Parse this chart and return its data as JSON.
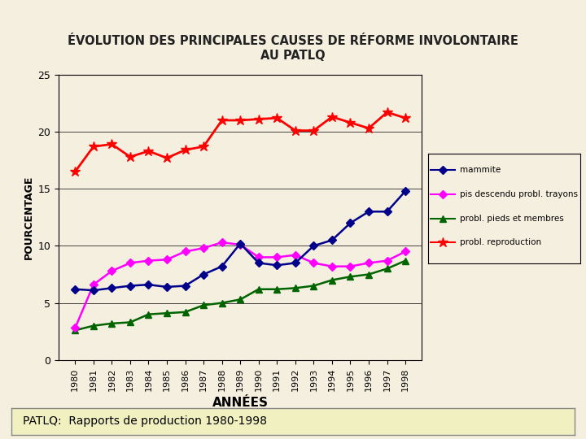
{
  "title": "ÉVOLUTION DES PRINCIPALES CAUSES DE RÉFORME INVOLONTAIRE\nAU PATLQ",
  "xlabel": "ANNÉES",
  "ylabel": "POURCENTAGE",
  "background_color": "#f5efe0",
  "plot_bg_color": "#f5efe0",
  "years": [
    1980,
    1981,
    1982,
    1983,
    1984,
    1985,
    1986,
    1987,
    1988,
    1989,
    1990,
    1991,
    1992,
    1993,
    1994,
    1995,
    1996,
    1997,
    1998
  ],
  "mammite": [
    6.2,
    6.1,
    6.3,
    6.5,
    6.6,
    6.4,
    6.5,
    7.5,
    8.2,
    10.2,
    8.5,
    8.3,
    8.5,
    10.0,
    10.5,
    12.0,
    13.0,
    13.0,
    14.8
  ],
  "pis_descendu": [
    2.8,
    6.6,
    7.8,
    8.5,
    8.7,
    8.8,
    9.5,
    9.8,
    10.3,
    10.1,
    9.0,
    9.0,
    9.2,
    8.5,
    8.2,
    8.2,
    8.5,
    8.7,
    9.5
  ],
  "pieds_membres": [
    2.6,
    3.0,
    3.2,
    3.3,
    4.0,
    4.1,
    4.2,
    4.8,
    5.0,
    5.3,
    6.2,
    6.2,
    6.3,
    6.5,
    7.0,
    7.3,
    7.5,
    8.0,
    8.7
  ],
  "reproduction": [
    16.5,
    18.7,
    18.9,
    17.8,
    18.3,
    17.7,
    18.4,
    18.7,
    21.0,
    21.0,
    21.1,
    21.2,
    20.1,
    20.1,
    21.3,
    20.8,
    20.3,
    21.7,
    21.2
  ],
  "mammite_color": "#00008B",
  "pis_color": "#FF00FF",
  "pieds_color": "#006400",
  "repro_color": "#FF0000",
  "legend_mammite": "mammite",
  "legend_pis": "pis descendu probl. trayons",
  "legend_pieds": "probl. pieds et membres",
  "legend_repro": "probl. reproduction",
  "ylim": [
    0,
    25
  ],
  "yticks": [
    0,
    5,
    10,
    15,
    20,
    25
  ],
  "source_text": "PATLQ:  Rapports de production 1980-1998"
}
